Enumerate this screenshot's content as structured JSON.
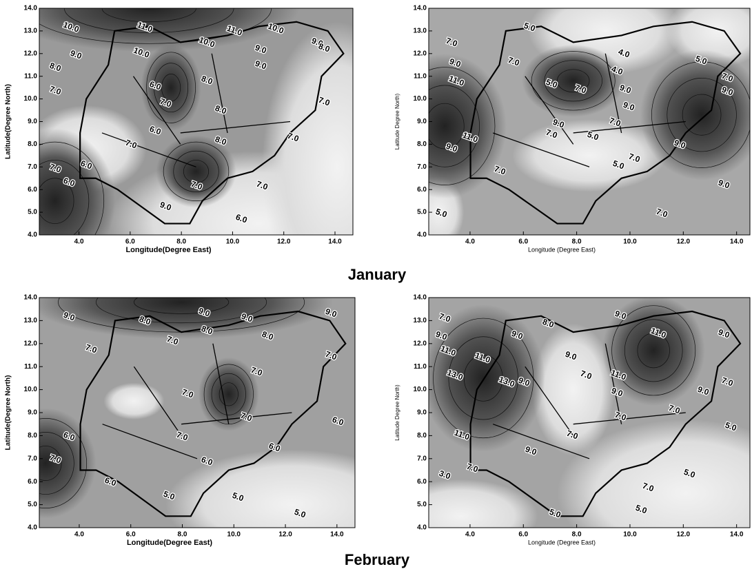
{
  "chart_data": [
    {
      "type": "contour",
      "x_label": "Longitude(Degree East)",
      "y_label": "Latitude(Degree North)",
      "xlim": [
        2.45,
        14.7
      ],
      "ylim": [
        4,
        14
      ],
      "xticks": [
        {
          "value": 4,
          "label": "4.0"
        },
        {
          "value": 6,
          "label": "6.0"
        },
        {
          "value": 8,
          "label": "8.0"
        },
        {
          "value": 10,
          "label": "10.0"
        },
        {
          "value": 12,
          "label": "12.0"
        },
        {
          "value": 14,
          "label": "14.0"
        }
      ],
      "yticks": [
        {
          "value": 4,
          "label": "4.0"
        },
        {
          "value": 5,
          "label": "5.0"
        },
        {
          "value": 6,
          "label": "6.0"
        },
        {
          "value": 7,
          "label": "7.0"
        },
        {
          "value": 8,
          "label": "8.0"
        },
        {
          "value": 9,
          "label": "9.0"
        },
        {
          "value": 10,
          "label": "10.0"
        },
        {
          "value": 11,
          "label": "11.0"
        },
        {
          "value": 12,
          "label": "12.0"
        },
        {
          "value": 13,
          "label": "13.0"
        },
        {
          "value": 14,
          "label": "14.0"
        }
      ],
      "contour_labels": [
        "10.0",
        "11.0",
        "11.0",
        "10.0",
        "9.0",
        "10.0",
        "10.0",
        "8.0",
        "9.0",
        "9.0",
        "8.0",
        "6.0",
        "9.0",
        "7.0",
        "8.0",
        "7.0",
        "7.0",
        "8.0",
        "6.0",
        "8.0",
        "7.0",
        "7.0",
        "6.0",
        "7.0",
        "6.0",
        "7.0",
        "7.0",
        "9.0",
        "6.0"
      ]
    },
    {
      "type": "contour",
      "x_label": "Longitude (Degree East)",
      "y_label": "Latitude Degree North)",
      "xlim": [
        2.45,
        14.5
      ],
      "ylim": [
        4,
        14
      ],
      "xticks": [
        {
          "value": 4,
          "label": "4.0"
        },
        {
          "value": 6,
          "label": "6.0"
        },
        {
          "value": 8,
          "label": "8.0"
        },
        {
          "value": 10,
          "label": "10.0"
        },
        {
          "value": 12,
          "label": "12.0"
        },
        {
          "value": 14,
          "label": "14.0"
        }
      ],
      "yticks": [
        {
          "value": 4,
          "label": "4.0"
        },
        {
          "value": 5,
          "label": "5.0"
        },
        {
          "value": 6,
          "label": "6.0"
        },
        {
          "value": 7,
          "label": "7.0"
        },
        {
          "value": 8,
          "label": "8.0"
        },
        {
          "value": 9,
          "label": "9.0"
        },
        {
          "value": 10,
          "label": "10.0"
        },
        {
          "value": 11,
          "label": "11.0"
        },
        {
          "value": 12,
          "label": "12.0"
        },
        {
          "value": 13,
          "label": "13.0"
        },
        {
          "value": 14,
          "label": "14.0"
        }
      ],
      "contour_labels": [
        "5.0",
        "7.0",
        "4.0",
        "5.0",
        "9.0",
        "7.0",
        "4.0",
        "11.0",
        "5.0",
        "7.0",
        "7.0",
        "9.0",
        "9.0",
        "9.0",
        "9.0",
        "7.0",
        "11.0",
        "5.0",
        "9.0",
        "7.0",
        "9.0",
        "7.0",
        "7.0",
        "5.0",
        "9.0",
        "5.0",
        "7.0"
      ]
    },
    {
      "type": "contour",
      "x_label": "Longitude(Degree East)",
      "y_label": "Latitude(Degree North)",
      "xlim": [
        2.45,
        14.7
      ],
      "ylim": [
        4,
        14
      ],
      "xticks": [
        {
          "value": 4,
          "label": "4.0"
        },
        {
          "value": 6,
          "label": "6.0"
        },
        {
          "value": 8,
          "label": "8.0"
        },
        {
          "value": 10,
          "label": "10.0"
        },
        {
          "value": 12,
          "label": "12.0"
        },
        {
          "value": 14,
          "label": "14.0"
        }
      ],
      "yticks": [
        {
          "value": 4,
          "label": "4.0"
        },
        {
          "value": 5,
          "label": "5.0"
        },
        {
          "value": 6,
          "label": "6.0"
        },
        {
          "value": 7,
          "label": "7.0"
        },
        {
          "value": 8,
          "label": "8.0"
        },
        {
          "value": 9,
          "label": "9.0"
        },
        {
          "value": 10,
          "label": "10.0"
        },
        {
          "value": 11,
          "label": "11.0"
        },
        {
          "value": 12,
          "label": "12.0"
        },
        {
          "value": 13,
          "label": "13.0"
        },
        {
          "value": 14,
          "label": "14.0"
        }
      ],
      "contour_labels": [
        "9.0",
        "8.0",
        "9.0",
        "9.0",
        "9.0",
        "7.0",
        "7.0",
        "8.0",
        "8.0",
        "7.0",
        "7.0",
        "7.0",
        "6.0",
        "7.0",
        "7.0",
        "6.0",
        "6.0",
        "6.0",
        "7.0",
        "6.0",
        "5.0",
        "5.0",
        "5.0"
      ]
    },
    {
      "type": "contour",
      "x_label": "Longitude (Degree East)",
      "y_label": "Latitude Degree North)",
      "xlim": [
        2.45,
        14.5
      ],
      "ylim": [
        4,
        14
      ],
      "xticks": [
        {
          "value": 4,
          "label": "4.0"
        },
        {
          "value": 6,
          "label": "6.0"
        },
        {
          "value": 8,
          "label": "8.0"
        },
        {
          "value": 10,
          "label": "10.0"
        },
        {
          "value": 12,
          "label": "12.0"
        },
        {
          "value": 14,
          "label": "14.0"
        }
      ],
      "yticks": [
        {
          "value": 4,
          "label": "4.0"
        },
        {
          "value": 5,
          "label": "5.0"
        },
        {
          "value": 6,
          "label": "6.0"
        },
        {
          "value": 7,
          "label": "7.0"
        },
        {
          "value": 8,
          "label": "8.0"
        },
        {
          "value": 9,
          "label": "9.0"
        },
        {
          "value": 10,
          "label": "10.0"
        },
        {
          "value": 11,
          "label": "11.0"
        },
        {
          "value": 12,
          "label": "12.0"
        },
        {
          "value": 13,
          "label": "13.0"
        },
        {
          "value": 14,
          "label": "14.0"
        }
      ],
      "contour_labels": [
        "7.0",
        "8.0",
        "9.0",
        "9.0",
        "9.0",
        "9.0",
        "11.0",
        "11.0",
        "9.0",
        "13.0",
        "13.0",
        "9.0",
        "11.0",
        "11.0",
        "9.0",
        "7.0",
        "9.0",
        "7.0",
        "7.0",
        "7.0",
        "5.0",
        "11.0",
        "7.0",
        "9.0",
        "3.0",
        "7.0",
        "5.0",
        "7.0",
        "5.0",
        "5.0"
      ]
    }
  ],
  "captions": [
    "January",
    "February"
  ]
}
